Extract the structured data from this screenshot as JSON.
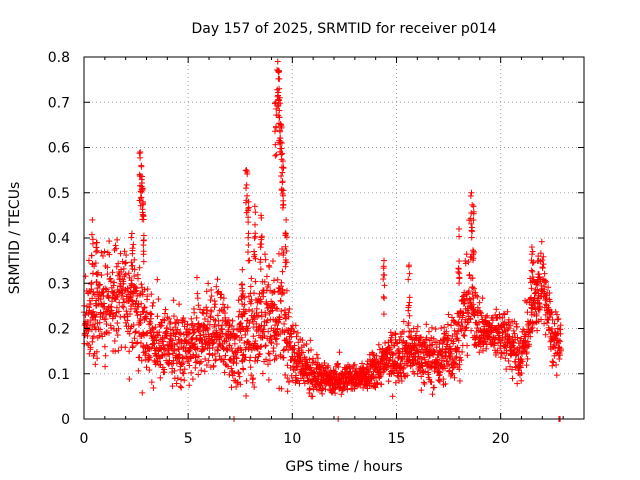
{
  "chart_data": {
    "type": "scatter",
    "title": "Day 157 of 2025, SRMTID for receiver p014",
    "xlabel": "GPS time / hours",
    "ylabel": "SRMTID / TECUs",
    "xlim": [
      0,
      24
    ],
    "ylim": [
      0,
      0.8
    ],
    "xticks": [
      0,
      5,
      10,
      15,
      20
    ],
    "yticks": [
      0,
      0.1,
      0.2,
      0.3,
      0.4,
      0.5,
      0.6,
      0.7,
      0.8
    ],
    "xtick_labels": [
      "0",
      "5",
      "10",
      "15",
      "20"
    ],
    "ytick_labels": [
      "0",
      "0.1",
      "0.2",
      "0.3",
      "0.4",
      "0.5",
      "0.6",
      "0.7",
      "0.8"
    ],
    "grid": true,
    "marker": "+",
    "color": "#ff0000",
    "series": [
      {
        "name": "SRMTID",
        "profile": {
          "hours": [
            0.0,
            0.5,
            1.0,
            1.5,
            2.0,
            2.5,
            3.0,
            3.5,
            4.0,
            4.5,
            5.0,
            5.5,
            6.0,
            6.5,
            7.0,
            7.5,
            8.0,
            8.5,
            9.0,
            9.5,
            10.0,
            10.5,
            11.0,
            11.5,
            12.0,
            12.5,
            13.0,
            13.5,
            14.0,
            14.5,
            15.0,
            15.5,
            16.0,
            16.5,
            17.0,
            17.5,
            18.0,
            18.5,
            19.0,
            19.5,
            20.0,
            20.5,
            21.0,
            21.5,
            22.0,
            22.5,
            22.9
          ],
          "median": [
            0.22,
            0.23,
            0.24,
            0.26,
            0.27,
            0.25,
            0.18,
            0.17,
            0.16,
            0.15,
            0.15,
            0.17,
            0.2,
            0.19,
            0.16,
            0.16,
            0.2,
            0.21,
            0.22,
            0.22,
            0.15,
            0.11,
            0.1,
            0.09,
            0.09,
            0.09,
            0.09,
            0.09,
            0.11,
            0.13,
            0.14,
            0.15,
            0.15,
            0.13,
            0.13,
            0.15,
            0.18,
            0.27,
            0.2,
            0.19,
            0.19,
            0.16,
            0.14,
            0.23,
            0.31,
            0.17,
            0.16
          ],
          "spread": [
            0.06,
            0.06,
            0.07,
            0.07,
            0.07,
            0.08,
            0.06,
            0.05,
            0.05,
            0.05,
            0.05,
            0.06,
            0.06,
            0.06,
            0.06,
            0.06,
            0.08,
            0.08,
            0.09,
            0.08,
            0.05,
            0.03,
            0.03,
            0.02,
            0.02,
            0.02,
            0.02,
            0.02,
            0.03,
            0.03,
            0.04,
            0.04,
            0.04,
            0.04,
            0.04,
            0.05,
            0.05,
            0.07,
            0.04,
            0.03,
            0.04,
            0.04,
            0.04,
            0.05,
            0.05,
            0.04,
            0.04
          ]
        },
        "peaks": [
          {
            "hour": 0.4,
            "value": 0.44
          },
          {
            "hour": 0.6,
            "value": 0.39
          },
          {
            "hour": 2.3,
            "value": 0.41
          },
          {
            "hour": 2.7,
            "value": 0.59
          },
          {
            "hour": 2.75,
            "value": 0.56
          },
          {
            "hour": 2.8,
            "value": 0.51
          },
          {
            "hour": 2.85,
            "value": 0.45
          },
          {
            "hour": 7.6,
            "value": 0.33
          },
          {
            "hour": 7.8,
            "value": 0.55
          },
          {
            "hour": 7.9,
            "value": 0.48
          },
          {
            "hour": 8.2,
            "value": 0.47
          },
          {
            "hour": 8.5,
            "value": 0.45
          },
          {
            "hour": 9.2,
            "value": 0.7
          },
          {
            "hour": 9.3,
            "value": 0.79
          },
          {
            "hour": 9.35,
            "value": 0.77
          },
          {
            "hour": 9.4,
            "value": 0.71
          },
          {
            "hour": 9.45,
            "value": 0.65
          },
          {
            "hour": 9.5,
            "value": 0.61
          },
          {
            "hour": 9.55,
            "value": 0.57
          },
          {
            "hour": 9.7,
            "value": 0.44
          },
          {
            "hour": 14.4,
            "value": 0.35
          },
          {
            "hour": 15.6,
            "value": 0.34
          },
          {
            "hour": 18.0,
            "value": 0.42
          },
          {
            "hour": 18.6,
            "value": 0.5
          },
          {
            "hour": 18.7,
            "value": 0.47
          },
          {
            "hour": 21.5,
            "value": 0.38
          },
          {
            "hour": 21.8,
            "value": 0.36
          }
        ],
        "zero_points": [
          {
            "hour": 7.2,
            "value": 0.0
          },
          {
            "hour": 12.2,
            "value": 0.0
          },
          {
            "hour": 22.8,
            "value": 0.0
          },
          {
            "hour": 22.85,
            "value": 0.0
          }
        ]
      }
    ]
  }
}
